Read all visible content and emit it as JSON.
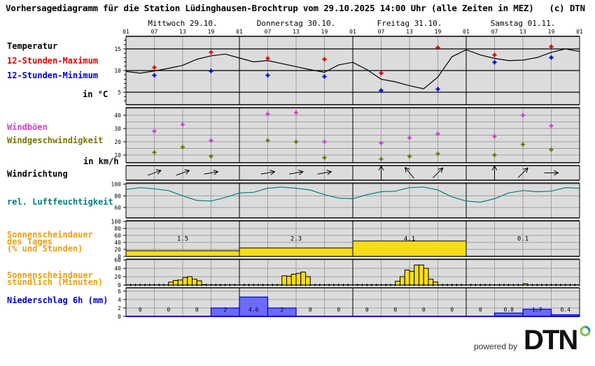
{
  "header": {
    "title": "Vorhersagediagramm für die Station Lüdinghausen-Brochtrup vom 29.10.2025 14:00 Uhr (alle Zeiten in MEZ)   (c) DTN"
  },
  "days": [
    "Mittwoch 29.10.",
    "Donnerstag 30.10.",
    "Freitag 31.10.",
    "Samstag 01.11."
  ],
  "hour_ticks": [
    "01",
    "07",
    "13",
    "19",
    "01",
    "07",
    "13",
    "19",
    "01",
    "07",
    "13",
    "19",
    "01",
    "07",
    "13",
    "19",
    "01"
  ],
  "labels": {
    "temperature": "Temperatur",
    "max12": "12-Stunden-Maximum",
    "min12": "12-Stunden-Minimum",
    "temp_unit": "in °C",
    "gusts": "Windböen",
    "windspeed": "Windgeschwindigkeit",
    "wind_unit": "in km/h",
    "winddir": "Windrichtung",
    "humidity": "rel. Luftfeuchtigkeit",
    "sun_day": "Sonnenscheindauer\ndes Tages\n(% und Stunden)",
    "sun_hourly": "Sonnenscheindauer\nstündlich (Minuten)",
    "precip": "Niederschlag 6h (mm)"
  },
  "colors": {
    "panel_bg": "#dcdcdc",
    "grid": "#a0a0a0",
    "max": "#dd0000",
    "min": "#0000dd",
    "gusts": "#cc44cc",
    "windspeed": "#777700",
    "humidity": "#008080",
    "sun": "#f8dc1c",
    "sun_label": "#e8a010",
    "precip_fill": "#6b6bff",
    "precip_line": "#0000cc",
    "precip_label": "#0000cc"
  },
  "footer": {
    "powered_by": "powered by",
    "brand": "DTN"
  },
  "chart_data": [
    {
      "type": "line",
      "title": "Temperatur",
      "ylabel": "in °C",
      "ylim": [
        2,
        18
      ],
      "yticks": [
        5,
        10,
        15
      ],
      "x_hours": [
        0,
        3,
        6,
        9,
        12,
        15,
        18,
        21,
        24,
        27,
        30,
        33,
        36,
        39,
        42,
        45,
        48,
        51,
        54,
        57,
        60,
        63,
        66,
        69,
        72,
        75,
        78,
        81,
        84,
        87,
        90,
        93,
        96
      ],
      "series": [
        {
          "name": "Temperatur",
          "values": [
            9.8,
            9.4,
            9.9,
            10.5,
            11.2,
            12.6,
            13.4,
            13.8,
            12.9,
            12.0,
            12.3,
            11.6,
            10.9,
            10.2,
            9.6,
            11.3,
            11.9,
            10.2,
            8.0,
            7.4,
            6.5,
            5.8,
            8.5,
            13.2,
            14.8,
            13.6,
            12.8,
            12.3,
            12.4,
            13.0,
            14.2,
            15.0,
            14.4
          ]
        },
        {
          "name": "12-Stunden-Maximum",
          "x": [
            6,
            18,
            30,
            42,
            54,
            66,
            78,
            90
          ],
          "values": [
            10.7,
            14.2,
            12.8,
            12.6,
            9.4,
            15.3,
            13.6,
            15.5
          ]
        },
        {
          "name": "12-Stunden-Minimum",
          "x": [
            6,
            18,
            30,
            42,
            54,
            66,
            78,
            90
          ],
          "values": [
            8.9,
            9.9,
            8.9,
            8.6,
            5.4,
            5.7,
            11.9,
            13.0
          ]
        }
      ]
    },
    {
      "type": "scatter",
      "title": "Wind",
      "ylabel": "in km/h",
      "ylim": [
        4,
        44
      ],
      "yticks": [
        10,
        20,
        30,
        40
      ],
      "x_hours": [
        6,
        12,
        18,
        30,
        36,
        42,
        54,
        60,
        66,
        78,
        84,
        90
      ],
      "series": [
        {
          "name": "Windböen",
          "values": [
            28,
            33,
            21,
            41,
            42,
            20,
            19,
            23,
            26,
            24,
            40,
            32
          ]
        },
        {
          "name": "Windgeschwindigkeit",
          "values": [
            12,
            16,
            9,
            21,
            20,
            8,
            7,
            9,
            11,
            10,
            18,
            14
          ]
        }
      ]
    },
    {
      "type": "table",
      "title": "Windrichtung",
      "x_hours": [
        6,
        12,
        18,
        30,
        36,
        42,
        54,
        60,
        66,
        78,
        84,
        90
      ],
      "directions_deg_toward": [
        70,
        70,
        80,
        80,
        80,
        80,
        0,
        -40,
        45,
        0,
        45,
        90
      ]
    },
    {
      "type": "line",
      "title": "rel. Luftfeuchtigkeit",
      "ylim": [
        40,
        100
      ],
      "yticks": [
        60,
        80,
        100
      ],
      "x_hours": [
        0,
        3,
        6,
        9,
        12,
        15,
        18,
        21,
        24,
        27,
        30,
        33,
        36,
        39,
        42,
        45,
        48,
        51,
        54,
        57,
        60,
        63,
        66,
        69,
        72,
        75,
        78,
        81,
        84,
        87,
        90,
        93,
        96
      ],
      "values": [
        91,
        94,
        92,
        89,
        80,
        72,
        71,
        77,
        85,
        86,
        93,
        95,
        93,
        90,
        82,
        76,
        75,
        82,
        87,
        88,
        94,
        95,
        90,
        78,
        71,
        69,
        75,
        85,
        89,
        87,
        88,
        94,
        93
      ]
    },
    {
      "type": "bar",
      "title": "Sonnenscheindauer des Tages (% und Stunden)",
      "ylim": [
        0,
        100
      ],
      "yticks": [
        0,
        20,
        40,
        60,
        80,
        100
      ],
      "categories": [
        "Mittwoch 29.10.",
        "Donnerstag 30.10.",
        "Freitag 31.10.",
        "Samstag 01.11."
      ],
      "percent": [
        16,
        24,
        44,
        0
      ],
      "hours_labels": [
        "1.5",
        "2.3",
        "4.1",
        "0.1"
      ]
    },
    {
      "type": "bar",
      "title": "Sonnenscheindauer stündlich (Minuten)",
      "ylim": [
        0,
        60
      ],
      "yticks": [
        0,
        20,
        40,
        60
      ],
      "x_hours_start": [
        9,
        10,
        11,
        12,
        13,
        14,
        15,
        16,
        33,
        34,
        35,
        36,
        37,
        38,
        57,
        58,
        59,
        60,
        61,
        62,
        63,
        64,
        65,
        84
      ],
      "values": [
        7,
        11,
        12,
        18,
        20,
        14,
        10,
        1,
        22,
        21,
        26,
        28,
        31,
        20,
        9,
        20,
        36,
        33,
        48,
        48,
        40,
        14,
        7,
        3
      ]
    },
    {
      "type": "bar",
      "title": "Niederschlag 6h (mm)",
      "ylim": [
        0,
        6
      ],
      "yticks": [
        0,
        2,
        4,
        6
      ],
      "categories": [
        "01-07",
        "07-13",
        "13-19",
        "19-01",
        "01-07",
        "07-13",
        "13-19",
        "19-01",
        "01-07",
        "07-13",
        "13-19",
        "19-01",
        "01-07",
        "07-13",
        "13-19",
        "19-01"
      ],
      "values": [
        0,
        0,
        0,
        2,
        4.6,
        2,
        0,
        0,
        0,
        0,
        0,
        0,
        0,
        0.8,
        1.7,
        0.4
      ],
      "labels": [
        "0",
        "0",
        "0",
        "2",
        "4.6",
        "2",
        "0",
        "0",
        "0",
        "0",
        "0",
        "0",
        "0",
        "0.8",
        "1.7",
        "0.4"
      ]
    }
  ]
}
